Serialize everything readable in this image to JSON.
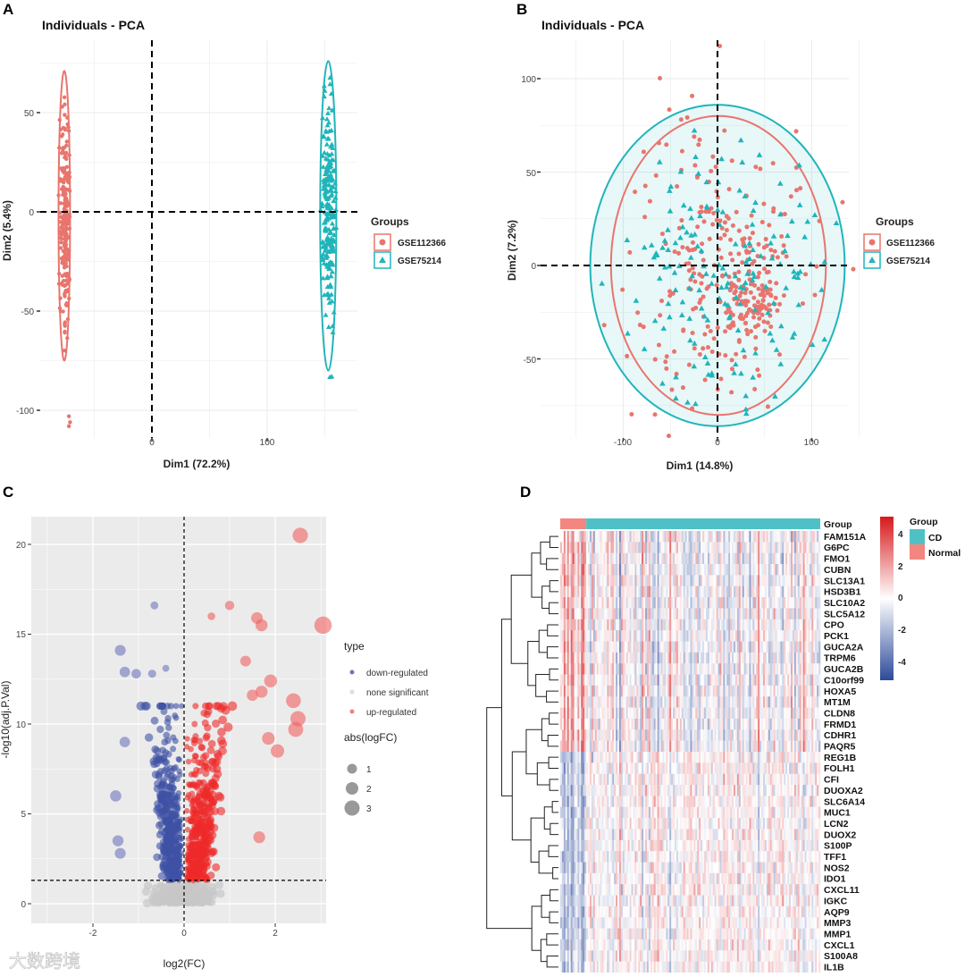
{
  "panel_labels": [
    "A",
    "B",
    "C",
    "D"
  ],
  "watermark": "大数跨境",
  "colors": {
    "red": "#E8756D",
    "teal": "#1FB5BA",
    "down": "#3F51A5",
    "up": "#EE2A2A",
    "ns": "#C8C8C8",
    "cd": "#4EC1C6",
    "normal": "#F3877F",
    "hm_high": "#D7191C",
    "hm_low": "#2C4A9A"
  },
  "chart_data": [
    {
      "type": "scatter",
      "title": "Individuals - PCA",
      "xlabel": "Dim1 (72.2%)",
      "ylabel": "Dim2 (5.4%)",
      "xticks": [
        "0",
        "100"
      ],
      "xtick_values": [
        0,
        100
      ],
      "yticks": [
        "50",
        "0",
        "-50",
        "-100"
      ],
      "ytick_values": [
        50,
        0,
        -50,
        -100
      ],
      "xlim": [
        -97,
        178
      ],
      "ylim": [
        -118,
        83
      ],
      "legend_title": "Groups",
      "legend_position": "right",
      "series": [
        {
          "name": "GSE112366",
          "shape": "circle",
          "center": [
            -75,
            -5
          ],
          "spread": [
            2.5,
            28
          ],
          "n": 250,
          "ellipse": {
            "cx": -76,
            "cy": -2,
            "rx": 5,
            "ry": 73
          },
          "outliers": [
            [
              -72,
              -103
            ],
            [
              -71,
              -106
            ],
            [
              -72,
              -108
            ]
          ]
        },
        {
          "name": "GSE75214",
          "shape": "triangle",
          "center": [
            153,
            0
          ],
          "spread": [
            3,
            27
          ],
          "n": 220,
          "ellipse": {
            "cx": 153,
            "cy": -2,
            "rx": 7,
            "ry": 78
          },
          "outliers": [
            [
              156,
              -83
            ]
          ]
        }
      ]
    },
    {
      "type": "scatter",
      "title": "Individuals - PCA",
      "xlabel": "Dim1 (14.8%)",
      "ylabel": "Dim2 (7.2%)",
      "xticks": [
        "-100",
        "0",
        "100"
      ],
      "xtick_values": [
        -100,
        0,
        100
      ],
      "yticks": [
        "100",
        "50",
        "0",
        "-50"
      ],
      "ytick_values": [
        100,
        50,
        0,
        -50
      ],
      "xlim": [
        -193,
        150
      ],
      "ylim": [
        -92,
        121
      ],
      "legend_title": "Groups",
      "legend_position": "right",
      "series": [
        {
          "name": "GSE112366",
          "shape": "circle",
          "center": [
            0,
            0
          ],
          "spread": [
            45,
            40
          ],
          "n": 330,
          "dense_cluster": [
            35,
            -18
          ],
          "ellipse": {
            "cx": 1,
            "cy": 0,
            "rx": 114,
            "ry": 80
          }
        },
        {
          "name": "GSE75214",
          "shape": "triangle",
          "center": [
            5,
            -5
          ],
          "spread": [
            55,
            38
          ],
          "n": 170,
          "ellipse": {
            "cx": 0,
            "cy": 0,
            "rx": 135,
            "ry": 86
          }
        }
      ]
    },
    {
      "type": "scatter",
      "subtype": "volcano",
      "xlabel": "log2(FC)",
      "ylabel": "-log10(adj.P.Val)",
      "xticks": [
        "-2",
        "0",
        "2"
      ],
      "xtick_values": [
        -2,
        0,
        2
      ],
      "yticks": [
        "20",
        "15",
        "10",
        "5",
        "0"
      ],
      "ytick_values": [
        20,
        15,
        10,
        5,
        0
      ],
      "xlim": [
        -3.4,
        3.2
      ],
      "ylim": [
        -1,
        21.5
      ],
      "threshold_y": 1.3,
      "threshold_x": 0,
      "legend_type_title": "type",
      "legend_type": [
        "down-regulated",
        "none significant",
        "up-regulated"
      ],
      "legend_size_title": "abs(logFC)",
      "legend_size": [
        "1",
        "2",
        "3"
      ],
      "legend_position": "right",
      "highlighted_points": {
        "up": [
          [
            2.55,
            20.5
          ],
          [
            3.05,
            15.5
          ],
          [
            1.0,
            16.6
          ],
          [
            1.6,
            15.9
          ],
          [
            1.7,
            15.5
          ],
          [
            0.6,
            16.0
          ],
          [
            1.35,
            13.5
          ],
          [
            1.9,
            12.4
          ],
          [
            2.4,
            11.3
          ],
          [
            2.5,
            10.3
          ],
          [
            2.45,
            9.7
          ],
          [
            1.85,
            9.2
          ],
          [
            2.05,
            8.5
          ],
          [
            1.65,
            3.7
          ],
          [
            1.5,
            11.6
          ],
          [
            1.7,
            11.8
          ]
        ],
        "down": [
          [
            -0.65,
            16.6
          ],
          [
            -1.4,
            14.1
          ],
          [
            -1.3,
            12.9
          ],
          [
            -1.05,
            12.8
          ],
          [
            -0.7,
            12.8
          ],
          [
            -0.4,
            13.1
          ],
          [
            -1.3,
            9.0
          ],
          [
            -1.5,
            6.0
          ],
          [
            -1.45,
            3.5
          ],
          [
            -1.4,
            2.8
          ]
        ]
      }
    },
    {
      "type": "heatmap",
      "annotation_label": "Group",
      "legend_title": "Group",
      "groups": [
        "CD",
        "Normal"
      ],
      "normal_fraction": 0.1,
      "color_scale_ticks": [
        "4",
        "2",
        "0",
        "-2",
        "-4"
      ],
      "color_scale_values": [
        4,
        2,
        0,
        -2,
        -4
      ],
      "genes": [
        "FAM151A",
        "G6PC",
        "FMO1",
        "CUBN",
        "SLC13A1",
        "HSD3B1",
        "SLC10A2",
        "SLC5A12",
        "CPO",
        "PCK1",
        "GUCA2A",
        "TRPM6",
        "GUCA2B",
        "C10orf99",
        "HOXA5",
        "MT1M",
        "CLDN8",
        "FRMD1",
        "CDHR1",
        "PAQR5",
        "REG1B",
        "FOLH1",
        "CFI",
        "DUOXA2",
        "SLC6A14",
        "MUC1",
        "LCN2",
        "DUOX2",
        "S100P",
        "TFF1",
        "NOS2",
        "IDO1",
        "CXCL11",
        "IGKC",
        "AQP9",
        "MMP3",
        "MMP1",
        "CXCL1",
        "S100A8",
        "IL1B"
      ],
      "normal_direction": [
        1,
        1,
        1,
        1,
        1,
        1,
        1,
        1,
        1,
        1,
        1,
        1,
        1,
        1,
        1,
        1,
        1,
        1,
        1,
        1,
        -1,
        -1,
        -1,
        -1,
        -1,
        -1,
        -1,
        -1,
        -1,
        -1,
        -1,
        -1,
        -1,
        -1,
        -1,
        -1,
        -1,
        -1,
        -1,
        -1
      ]
    }
  ]
}
